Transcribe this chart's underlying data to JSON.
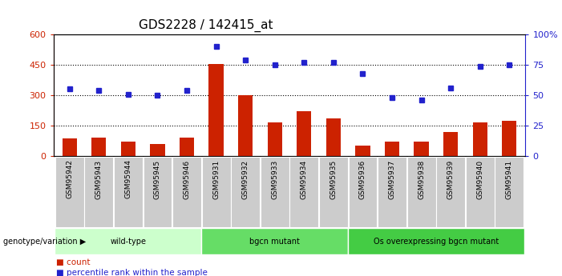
{
  "title": "GDS2228 / 142415_at",
  "categories": [
    "GSM95942",
    "GSM95943",
    "GSM95944",
    "GSM95945",
    "GSM95946",
    "GSM95931",
    "GSM95932",
    "GSM95933",
    "GSM95934",
    "GSM95935",
    "GSM95936",
    "GSM95937",
    "GSM95938",
    "GSM95939",
    "GSM95940",
    "GSM95941"
  ],
  "bar_values": [
    85,
    90,
    70,
    60,
    90,
    455,
    300,
    165,
    220,
    185,
    50,
    70,
    70,
    120,
    165,
    175
  ],
  "dot_values_pct": [
    55,
    54,
    51,
    50,
    54,
    90,
    79,
    75,
    77,
    77,
    68,
    48,
    46,
    56,
    74,
    75
  ],
  "bar_color": "#cc2200",
  "dot_color": "#2222cc",
  "ylim_left": [
    0,
    600
  ],
  "ylim_right": [
    0,
    100
  ],
  "yticks_left": [
    0,
    150,
    300,
    450,
    600
  ],
  "ytick_labels_left": [
    "0",
    "150",
    "300",
    "450",
    "600"
  ],
  "yticks_right": [
    0,
    25,
    50,
    75,
    100
  ],
  "ytick_labels_right": [
    "0",
    "25",
    "50",
    "75",
    "100%"
  ],
  "groups": [
    {
      "label": "wild-type",
      "start": 0,
      "end": 5,
      "color": "#ccffcc"
    },
    {
      "label": "bgcn mutant",
      "start": 5,
      "end": 10,
      "color": "#66dd66"
    },
    {
      "label": "Os overexpressing bgcn mutant",
      "start": 10,
      "end": 16,
      "color": "#44cc44"
    }
  ],
  "group_row_label": "genotype/variation",
  "legend_count_label": "count",
  "legend_percentile_label": "percentile rank within the sample",
  "hline_values": [
    150,
    300,
    450
  ],
  "title_fontsize": 11,
  "bar_width": 0.5,
  "xtick_bg_color": "#cccccc",
  "plot_bg_color": "#ffffff"
}
